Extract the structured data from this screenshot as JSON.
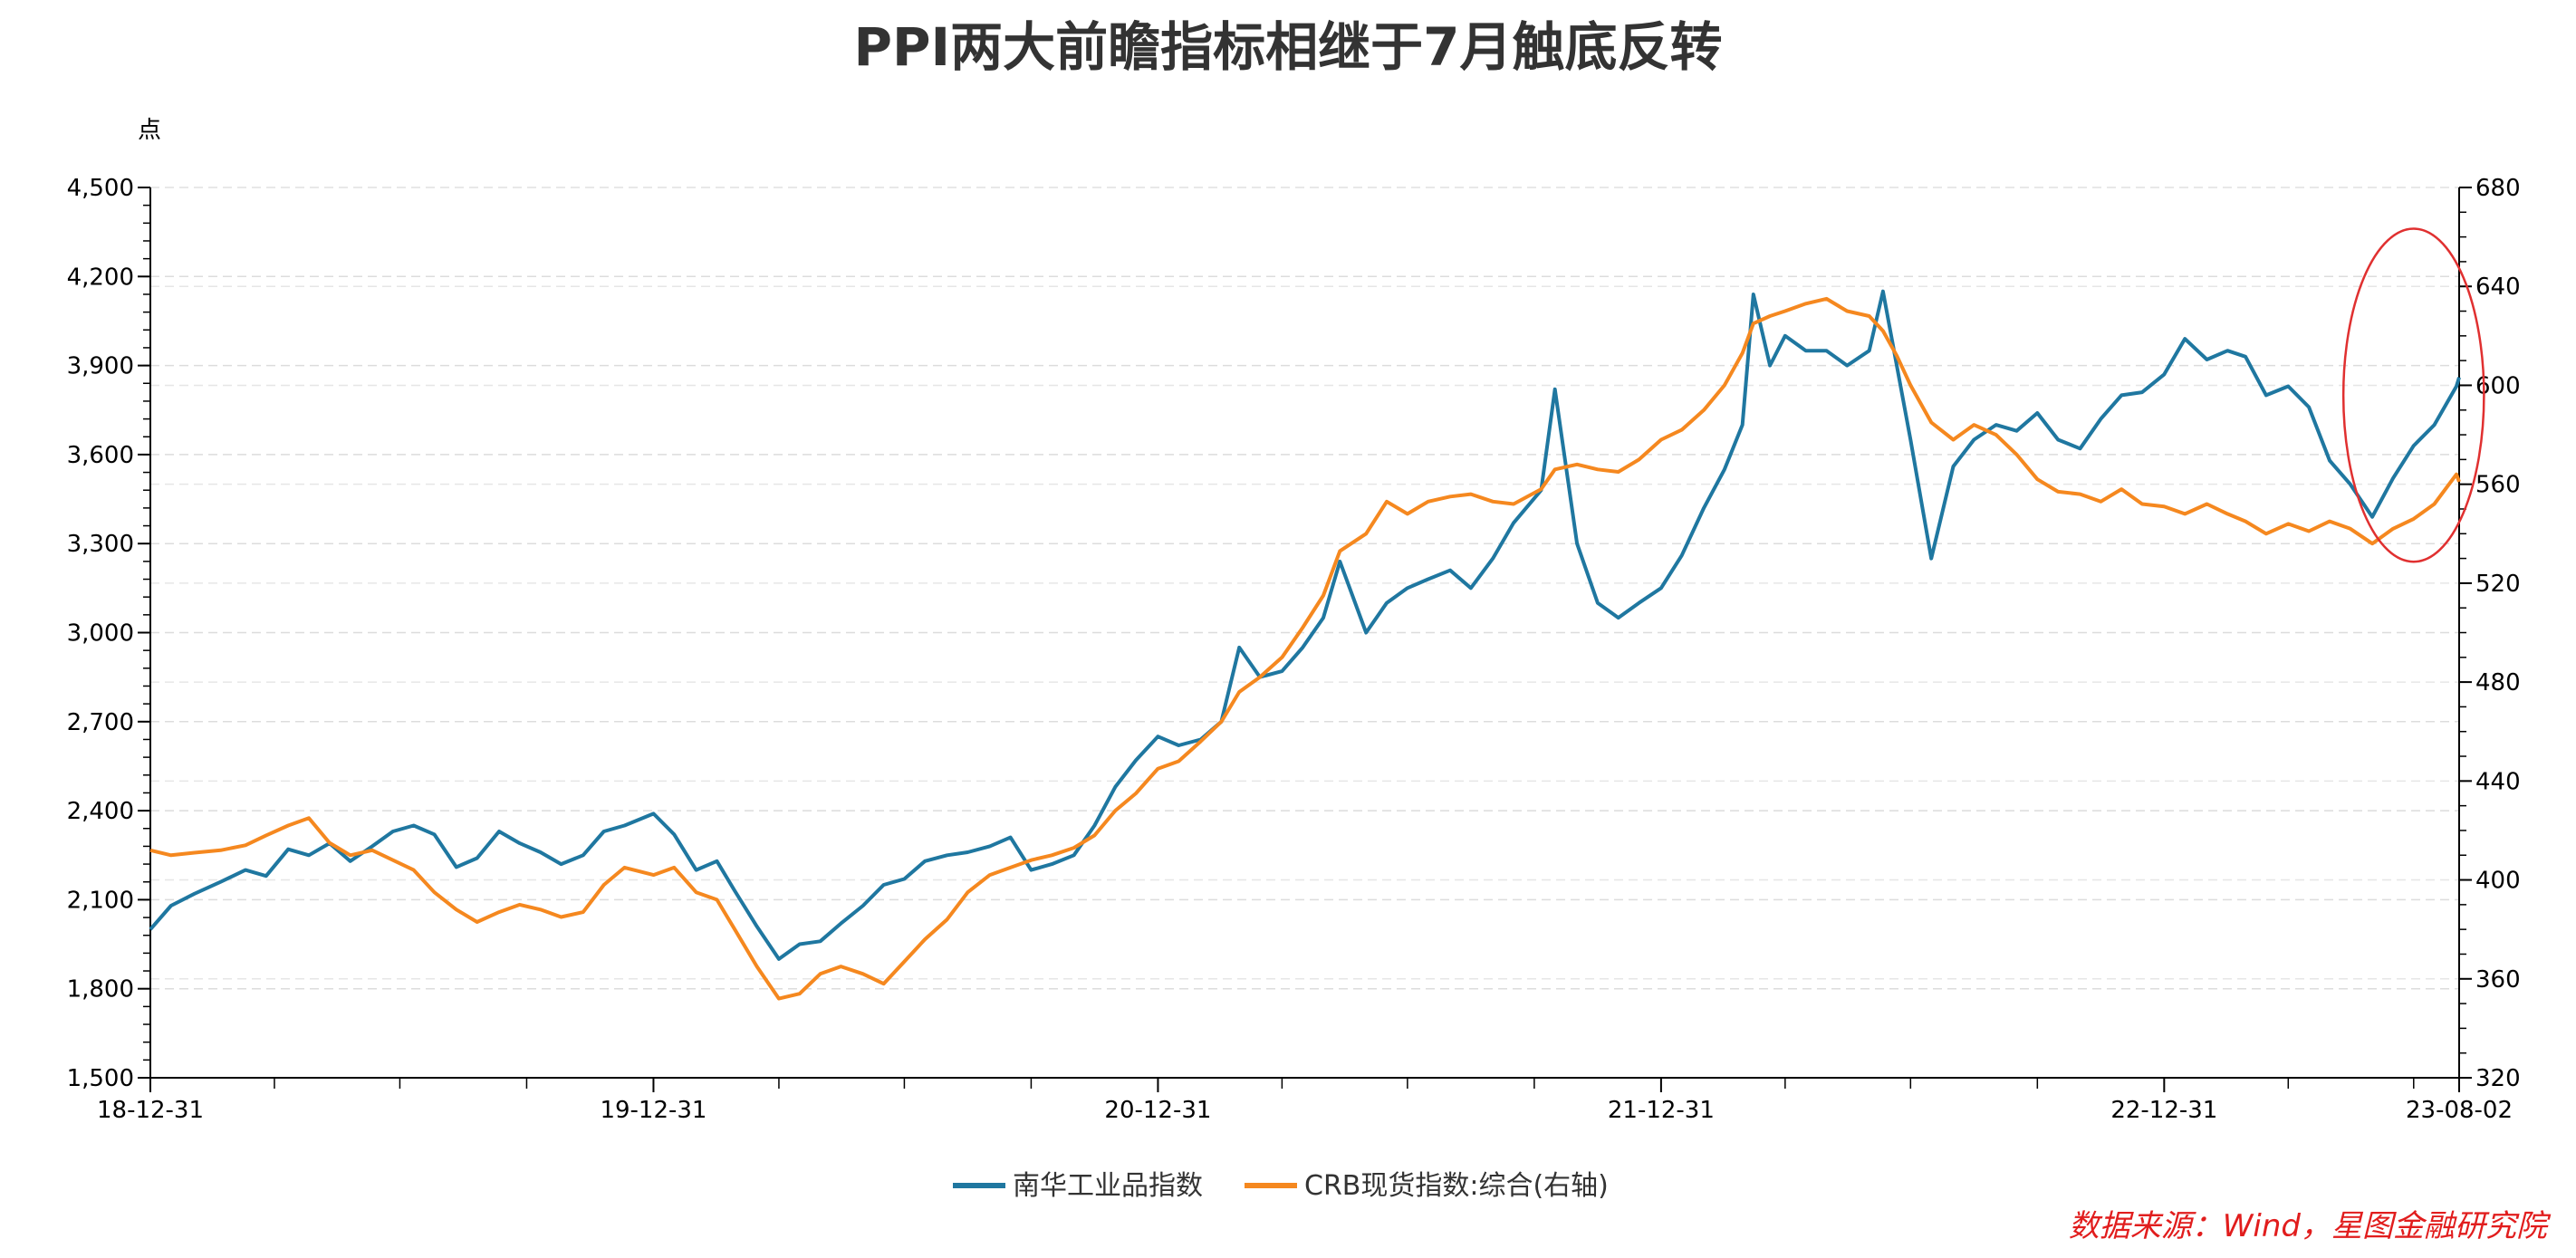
{
  "chart_data": {
    "type": "line",
    "title": "PPI两大前瞻指标相继于7月触底反转",
    "left_axis_unit": "点",
    "x_start": "2018-12-31",
    "x_end": "2023-08-02",
    "x_tick_labels": [
      "18-12-31",
      "19-12-31",
      "20-12-31",
      "21-12-31",
      "22-12-31",
      "23-08-02"
    ],
    "x_tick_dates": [
      "2018-12-31",
      "2019-12-31",
      "2020-12-31",
      "2021-12-31",
      "2022-12-31",
      "2023-08-02"
    ],
    "y_left": {
      "min": 1500,
      "max": 4500,
      "ticks": [
        "1,500",
        "1,800",
        "2,100",
        "2,400",
        "2,700",
        "3,000",
        "3,300",
        "3,600",
        "3,900",
        "4,200",
        "4,500"
      ]
    },
    "y_right": {
      "min": 320,
      "max": 680,
      "ticks": [
        "320",
        "360",
        "400",
        "440",
        "480",
        "520",
        "560",
        "600",
        "640",
        "680"
      ]
    },
    "grid": "horizontal-dashed",
    "legend_position": "bottom-center",
    "series": [
      {
        "name": "南华工业品指数",
        "axis": "left",
        "color": "#1f77a0",
        "points": [
          [
            "2018-12-31",
            2000
          ],
          [
            "2019-01-15",
            2080
          ],
          [
            "2019-02-01",
            2120
          ],
          [
            "2019-02-20",
            2160
          ],
          [
            "2019-03-10",
            2200
          ],
          [
            "2019-03-25",
            2180
          ],
          [
            "2019-04-10",
            2270
          ],
          [
            "2019-04-25",
            2250
          ],
          [
            "2019-05-10",
            2290
          ],
          [
            "2019-05-25",
            2230
          ],
          [
            "2019-06-10",
            2280
          ],
          [
            "2019-06-25",
            2330
          ],
          [
            "2019-07-10",
            2350
          ],
          [
            "2019-07-25",
            2320
          ],
          [
            "2019-08-10",
            2210
          ],
          [
            "2019-08-25",
            2240
          ],
          [
            "2019-09-10",
            2330
          ],
          [
            "2019-09-25",
            2290
          ],
          [
            "2019-10-10",
            2260
          ],
          [
            "2019-10-25",
            2220
          ],
          [
            "2019-11-10",
            2250
          ],
          [
            "2019-11-25",
            2330
          ],
          [
            "2019-12-10",
            2350
          ],
          [
            "2019-12-31",
            2390
          ],
          [
            "2020-01-15",
            2320
          ],
          [
            "2020-01-31",
            2200
          ],
          [
            "2020-02-15",
            2230
          ],
          [
            "2020-02-28",
            2130
          ],
          [
            "2020-03-15",
            2010
          ],
          [
            "2020-03-31",
            1900
          ],
          [
            "2020-04-15",
            1950
          ],
          [
            "2020-04-30",
            1960
          ],
          [
            "2020-05-15",
            2020
          ],
          [
            "2020-05-31",
            2080
          ],
          [
            "2020-06-15",
            2150
          ],
          [
            "2020-06-30",
            2170
          ],
          [
            "2020-07-15",
            2230
          ],
          [
            "2020-07-31",
            2250
          ],
          [
            "2020-08-15",
            2260
          ],
          [
            "2020-08-31",
            2280
          ],
          [
            "2020-09-15",
            2310
          ],
          [
            "2020-09-30",
            2200
          ],
          [
            "2020-10-15",
            2220
          ],
          [
            "2020-10-31",
            2250
          ],
          [
            "2020-11-15",
            2350
          ],
          [
            "2020-11-30",
            2480
          ],
          [
            "2020-12-15",
            2570
          ],
          [
            "2020-12-31",
            2650
          ],
          [
            "2021-01-15",
            2620
          ],
          [
            "2021-01-31",
            2640
          ],
          [
            "2021-02-15",
            2700
          ],
          [
            "2021-02-28",
            2950
          ],
          [
            "2021-03-15",
            2850
          ],
          [
            "2021-03-31",
            2870
          ],
          [
            "2021-04-15",
            2950
          ],
          [
            "2021-04-30",
            3050
          ],
          [
            "2021-05-12",
            3240
          ],
          [
            "2021-05-31",
            3000
          ],
          [
            "2021-06-15",
            3100
          ],
          [
            "2021-06-30",
            3150
          ],
          [
            "2021-07-15",
            3180
          ],
          [
            "2021-07-31",
            3210
          ],
          [
            "2021-08-15",
            3150
          ],
          [
            "2021-08-31",
            3250
          ],
          [
            "2021-09-15",
            3370
          ],
          [
            "2021-10-05",
            3480
          ],
          [
            "2021-10-15",
            3820
          ],
          [
            "2021-10-31",
            3300
          ],
          [
            "2021-11-15",
            3100
          ],
          [
            "2021-11-30",
            3050
          ],
          [
            "2021-12-15",
            3100
          ],
          [
            "2021-12-31",
            3150
          ],
          [
            "2022-01-15",
            3260
          ],
          [
            "2022-01-31",
            3420
          ],
          [
            "2022-02-15",
            3550
          ],
          [
            "2022-02-28",
            3700
          ],
          [
            "2022-03-08",
            4140
          ],
          [
            "2022-03-20",
            3900
          ],
          [
            "2022-03-31",
            4000
          ],
          [
            "2022-04-15",
            3950
          ],
          [
            "2022-04-30",
            3950
          ],
          [
            "2022-05-15",
            3900
          ],
          [
            "2022-05-31",
            3950
          ],
          [
            "2022-06-10",
            4150
          ],
          [
            "2022-06-20",
            3900
          ],
          [
            "2022-06-30",
            3650
          ],
          [
            "2022-07-15",
            3250
          ],
          [
            "2022-07-31",
            3560
          ],
          [
            "2022-08-15",
            3650
          ],
          [
            "2022-08-31",
            3700
          ],
          [
            "2022-09-15",
            3680
          ],
          [
            "2022-09-30",
            3740
          ],
          [
            "2022-10-15",
            3650
          ],
          [
            "2022-10-31",
            3620
          ],
          [
            "2022-11-15",
            3720
          ],
          [
            "2022-11-30",
            3800
          ],
          [
            "2022-12-15",
            3810
          ],
          [
            "2022-12-31",
            3870
          ],
          [
            "2023-01-15",
            3990
          ],
          [
            "2023-01-31",
            3920
          ],
          [
            "2023-02-15",
            3950
          ],
          [
            "2023-02-28",
            3930
          ],
          [
            "2023-03-15",
            3800
          ],
          [
            "2023-03-31",
            3830
          ],
          [
            "2023-04-15",
            3760
          ],
          [
            "2023-04-30",
            3580
          ],
          [
            "2023-05-15",
            3500
          ],
          [
            "2023-05-31",
            3390
          ],
          [
            "2023-06-15",
            3520
          ],
          [
            "2023-06-30",
            3630
          ],
          [
            "2023-07-15",
            3700
          ],
          [
            "2023-07-31",
            3830
          ],
          [
            "2023-08-02",
            3860
          ]
        ]
      },
      {
        "name": "CRB现货指数:综合(右轴)",
        "axis": "right",
        "color": "#f5881f",
        "points": [
          [
            "2018-12-31",
            412
          ],
          [
            "2019-01-15",
            410
          ],
          [
            "2019-02-01",
            411
          ],
          [
            "2019-02-20",
            412
          ],
          [
            "2019-03-10",
            414
          ],
          [
            "2019-03-25",
            418
          ],
          [
            "2019-04-10",
            422
          ],
          [
            "2019-04-25",
            425
          ],
          [
            "2019-05-10",
            415
          ],
          [
            "2019-05-25",
            410
          ],
          [
            "2019-06-10",
            412
          ],
          [
            "2019-06-25",
            408
          ],
          [
            "2019-07-10",
            404
          ],
          [
            "2019-07-25",
            395
          ],
          [
            "2019-08-10",
            388
          ],
          [
            "2019-08-25",
            383
          ],
          [
            "2019-09-10",
            387
          ],
          [
            "2019-09-25",
            390
          ],
          [
            "2019-10-10",
            388
          ],
          [
            "2019-10-25",
            385
          ],
          [
            "2019-11-10",
            387
          ],
          [
            "2019-11-25",
            398
          ],
          [
            "2019-12-10",
            405
          ],
          [
            "2019-12-31",
            402
          ],
          [
            "2020-01-15",
            405
          ],
          [
            "2020-01-31",
            395
          ],
          [
            "2020-02-15",
            392
          ],
          [
            "2020-02-28",
            380
          ],
          [
            "2020-03-15",
            365
          ],
          [
            "2020-03-31",
            352
          ],
          [
            "2020-04-15",
            354
          ],
          [
            "2020-04-30",
            362
          ],
          [
            "2020-05-15",
            365
          ],
          [
            "2020-05-31",
            362
          ],
          [
            "2020-06-15",
            358
          ],
          [
            "2020-06-30",
            367
          ],
          [
            "2020-07-15",
            376
          ],
          [
            "2020-07-31",
            384
          ],
          [
            "2020-08-15",
            395
          ],
          [
            "2020-08-31",
            402
          ],
          [
            "2020-09-15",
            405
          ],
          [
            "2020-09-30",
            408
          ],
          [
            "2020-10-15",
            410
          ],
          [
            "2020-10-31",
            413
          ],
          [
            "2020-11-15",
            418
          ],
          [
            "2020-11-30",
            428
          ],
          [
            "2020-12-15",
            435
          ],
          [
            "2020-12-31",
            445
          ],
          [
            "2021-01-15",
            448
          ],
          [
            "2021-01-31",
            456
          ],
          [
            "2021-02-15",
            464
          ],
          [
            "2021-02-28",
            476
          ],
          [
            "2021-03-15",
            482
          ],
          [
            "2021-03-31",
            490
          ],
          [
            "2021-04-15",
            502
          ],
          [
            "2021-04-30",
            515
          ],
          [
            "2021-05-12",
            533
          ],
          [
            "2021-05-31",
            540
          ],
          [
            "2021-06-15",
            553
          ],
          [
            "2021-06-30",
            548
          ],
          [
            "2021-07-15",
            553
          ],
          [
            "2021-07-31",
            555
          ],
          [
            "2021-08-15",
            556
          ],
          [
            "2021-08-31",
            553
          ],
          [
            "2021-09-15",
            552
          ],
          [
            "2021-10-05",
            558
          ],
          [
            "2021-10-15",
            566
          ],
          [
            "2021-10-31",
            568
          ],
          [
            "2021-11-15",
            566
          ],
          [
            "2021-11-30",
            565
          ],
          [
            "2021-12-15",
            570
          ],
          [
            "2021-12-31",
            578
          ],
          [
            "2022-01-15",
            582
          ],
          [
            "2022-01-31",
            590
          ],
          [
            "2022-02-15",
            600
          ],
          [
            "2022-02-28",
            613
          ],
          [
            "2022-03-08",
            625
          ],
          [
            "2022-03-20",
            628
          ],
          [
            "2022-03-31",
            630
          ],
          [
            "2022-04-15",
            633
          ],
          [
            "2022-04-30",
            635
          ],
          [
            "2022-05-15",
            630
          ],
          [
            "2022-05-31",
            628
          ],
          [
            "2022-06-10",
            622
          ],
          [
            "2022-06-20",
            612
          ],
          [
            "2022-06-30",
            600
          ],
          [
            "2022-07-15",
            585
          ],
          [
            "2022-07-31",
            578
          ],
          [
            "2022-08-15",
            584
          ],
          [
            "2022-08-31",
            580
          ],
          [
            "2022-09-15",
            572
          ],
          [
            "2022-09-30",
            562
          ],
          [
            "2022-10-15",
            557
          ],
          [
            "2022-10-31",
            556
          ],
          [
            "2022-11-15",
            553
          ],
          [
            "2022-11-30",
            558
          ],
          [
            "2022-12-15",
            552
          ],
          [
            "2022-12-31",
            551
          ],
          [
            "2023-01-15",
            548
          ],
          [
            "2023-01-31",
            552
          ],
          [
            "2023-02-15",
            548
          ],
          [
            "2023-02-28",
            545
          ],
          [
            "2023-03-15",
            540
          ],
          [
            "2023-03-31",
            544
          ],
          [
            "2023-04-15",
            541
          ],
          [
            "2023-04-30",
            545
          ],
          [
            "2023-05-15",
            542
          ],
          [
            "2023-05-31",
            536
          ],
          [
            "2023-06-15",
            542
          ],
          [
            "2023-06-30",
            546
          ],
          [
            "2023-07-15",
            552
          ],
          [
            "2023-07-31",
            564
          ],
          [
            "2023-08-02",
            561
          ]
        ]
      }
    ],
    "annotation": {
      "type": "ellipse",
      "color": "#e03030",
      "x_start": "2023-05-10",
      "x_end": "2023-08-20",
      "y_left_min": 3300,
      "y_left_max": 4300
    }
  },
  "source_note": "数据来源：Wind，星图金融研究院"
}
